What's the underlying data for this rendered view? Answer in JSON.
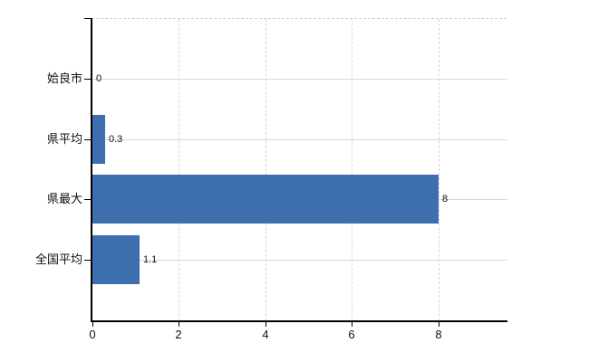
{
  "chart_data": {
    "type": "bar",
    "orientation": "horizontal",
    "categories": [
      "姶良市",
      "県平均",
      "県最大",
      "全国平均"
    ],
    "values": [
      0,
      0.3,
      8,
      1.1
    ],
    "value_labels": [
      "0",
      "0.3",
      "8",
      "1.1"
    ],
    "xticks": [
      0,
      2,
      4,
      6,
      8
    ],
    "xtick_labels": [
      "0",
      "2",
      "4",
      "6",
      "8"
    ],
    "xlim": [
      0,
      9.6
    ],
    "grid": true,
    "legend": false,
    "bar_color": "#3d6fae",
    "axis_color": "#000000",
    "hgrid_color": "#d4d8d4",
    "vgrid_color": "#d8d8d8",
    "top_border_color": "#cccccc",
    "background_color": "#ffffff"
  }
}
